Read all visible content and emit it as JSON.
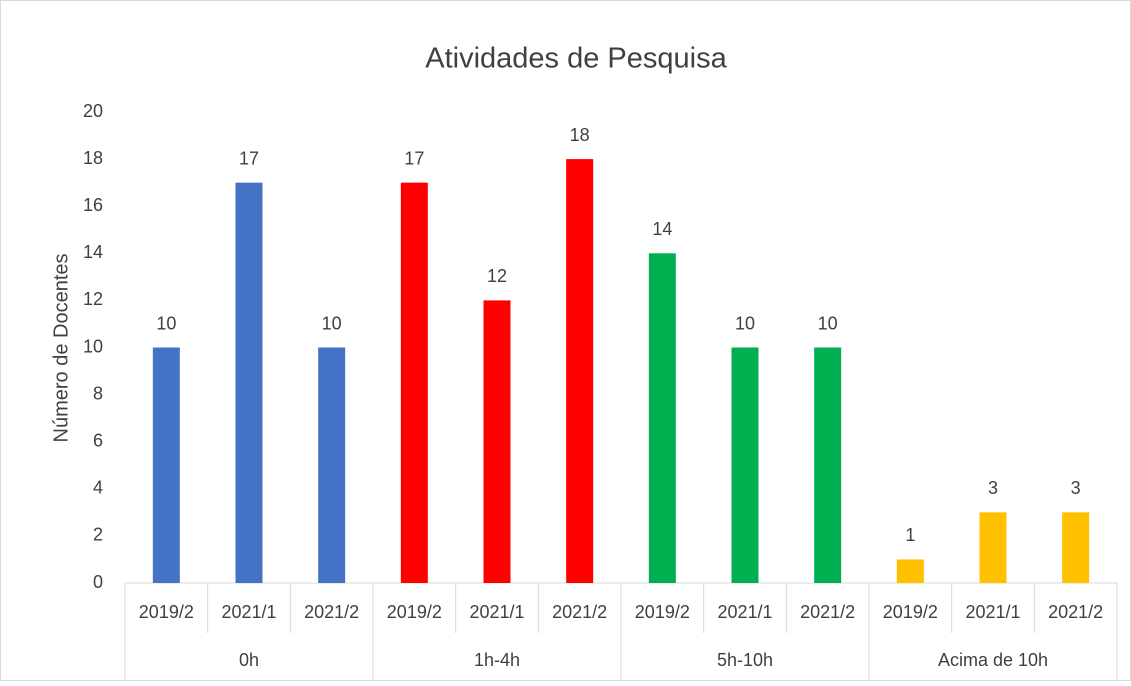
{
  "chart_data": {
    "type": "bar",
    "title": "Atividades de Pesquisa",
    "y_label": "Número de Docentes",
    "groups": [
      {
        "name": "0h",
        "color": "#4472c4",
        "categories": [
          "2019/2",
          "2021/1",
          "2021/2"
        ],
        "values": [
          10,
          17,
          10
        ]
      },
      {
        "name": "1h-4h",
        "color": "#ff0000",
        "categories": [
          "2019/2",
          "2021/1",
          "2021/2"
        ],
        "values": [
          17,
          12,
          18
        ]
      },
      {
        "name": "5h-10h",
        "color": "#00b050",
        "categories": [
          "2019/2",
          "2021/1",
          "2021/2"
        ],
        "values": [
          14,
          10,
          10
        ]
      },
      {
        "name": "Acima de 10h",
        "color": "#ffc000",
        "categories": [
          "2019/2",
          "2021/1",
          "2021/2"
        ],
        "values": [
          1,
          3,
          3
        ]
      }
    ],
    "ylim": [
      0,
      20
    ],
    "yticks": [
      0,
      2,
      4,
      6,
      8,
      10,
      12,
      14,
      16,
      18,
      20
    ],
    "grid": false
  }
}
